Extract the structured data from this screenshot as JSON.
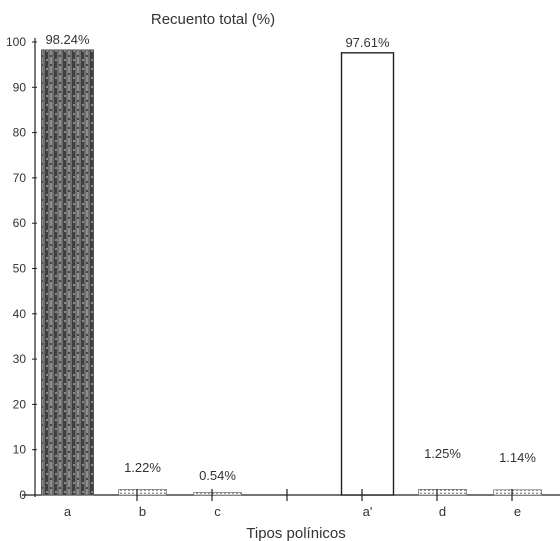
{
  "chart_data": {
    "type": "bar",
    "title": "Recuento total (%)",
    "xlabel": "Tipos polínicos",
    "ylabel": "",
    "ylim": [
      0,
      100
    ],
    "yticks": [
      0,
      10,
      20,
      30,
      40,
      50,
      60,
      70,
      80,
      90,
      100
    ],
    "grid": false,
    "categories": [
      "a",
      "b",
      "c",
      "",
      "a'",
      "d",
      "e"
    ],
    "values": [
      98.24,
      1.22,
      0.54,
      null,
      97.61,
      1.25,
      1.14
    ],
    "value_labels": [
      "98.24%",
      "1.22%",
      "0.54%",
      "",
      "97.61%",
      "1.25%",
      "1.14%"
    ],
    "bar_styles": [
      "hatched-dark",
      "dotted",
      "dotted",
      "none",
      "outline",
      "dotted",
      "dotted"
    ],
    "colors": {
      "dark_bar": "#555555",
      "outline": "#222222",
      "axis": "#222222"
    }
  }
}
